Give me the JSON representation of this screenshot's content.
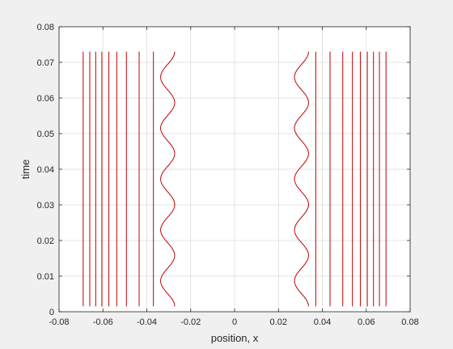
{
  "chart_data": {
    "type": "line",
    "title": "",
    "xlabel": "position, x",
    "ylabel": "time",
    "xlim": [
      -0.08,
      0.08
    ],
    "ylim": [
      0,
      0.08
    ],
    "grid": true,
    "xticks": [
      -0.08,
      -0.06,
      -0.04,
      -0.02,
      0,
      0.02,
      0.04,
      0.06,
      0.08
    ],
    "xtick_labels": [
      "-0.08",
      "-0.06",
      "-0.04",
      "-0.02",
      "0",
      "0.02",
      "0.04",
      "0.06",
      "0.08"
    ],
    "yticks": [
      0,
      0.01,
      0.02,
      0.03,
      0.04,
      0.05,
      0.06,
      0.07,
      0.08
    ],
    "ytick_labels": [
      "0",
      "0.01",
      "0.02",
      "0.03",
      "0.04",
      "0.05",
      "0.06",
      "0.07",
      "0.08"
    ],
    "line_color": "#c00000",
    "time_range": [
      0.0015,
      0.073
    ],
    "vertical_lines_x": [
      -0.069,
      -0.066,
      -0.0633,
      -0.0605,
      -0.0573,
      -0.0537,
      -0.0493,
      -0.0435,
      -0.037,
      0.037,
      0.0435,
      0.0493,
      0.0537,
      0.0573,
      0.0605,
      0.0633,
      0.066,
      0.069
    ],
    "oscillating_lines": [
      {
        "center_x": -0.0305,
        "amplitude": 0.0032,
        "period": 0.0143,
        "phase_time": 0.0015
      },
      {
        "center_x": 0.0305,
        "amplitude": 0.0032,
        "period": 0.0143,
        "phase_time": 0.0015
      }
    ]
  }
}
